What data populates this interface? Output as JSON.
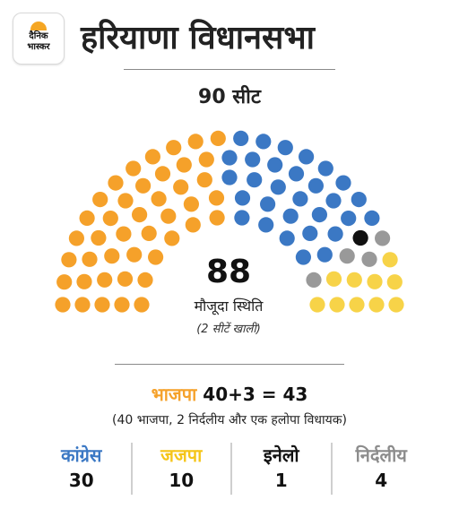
{
  "logo": {
    "line1": "दैनिक",
    "line2": "भास्कर"
  },
  "title": "हरियाणा विधानसभा",
  "total_seats_label": "90 सीट",
  "current_strength": "88",
  "status_label": "मौजूदा स्थिति",
  "vacant_note": "(2 सीटें खाली)",
  "bjp": {
    "name": "भाजपा",
    "total": "40+3 = 43",
    "note": "(40 भाजपा, 2 निर्दलीय और एक हलोपा विधायक)"
  },
  "colors": {
    "bjp": "#f5a12a",
    "congress": "#3b78c4",
    "jjp": "#f7d348",
    "inld": "#111111",
    "independent": "#999999"
  },
  "chart_data": {
    "type": "parliament",
    "total_seats": 90,
    "occupied_seats": 88,
    "vacant_seats": 2,
    "series": [
      {
        "name": "भाजपा",
        "value": 43,
        "color": "#f5a12a"
      },
      {
        "name": "कांग्रेस",
        "value": 30,
        "color": "#3b78c4"
      },
      {
        "name": "इनेलो",
        "value": 1,
        "color": "#111111"
      },
      {
        "name": "निर्दलीय",
        "value": 4,
        "color": "#999999"
      },
      {
        "name": "जजपा",
        "value": 10,
        "color": "#f7d348"
      }
    ]
  },
  "parties": [
    {
      "name": "कांग्रेस",
      "value": "30",
      "color": "#3b78c4"
    },
    {
      "name": "जजपा",
      "value": "10",
      "color": "#f5c518"
    },
    {
      "name": "इनेलो",
      "value": "1",
      "color": "#111111"
    },
    {
      "name": "निर्दलीय",
      "value": "4",
      "color": "#8c8c8c"
    }
  ]
}
